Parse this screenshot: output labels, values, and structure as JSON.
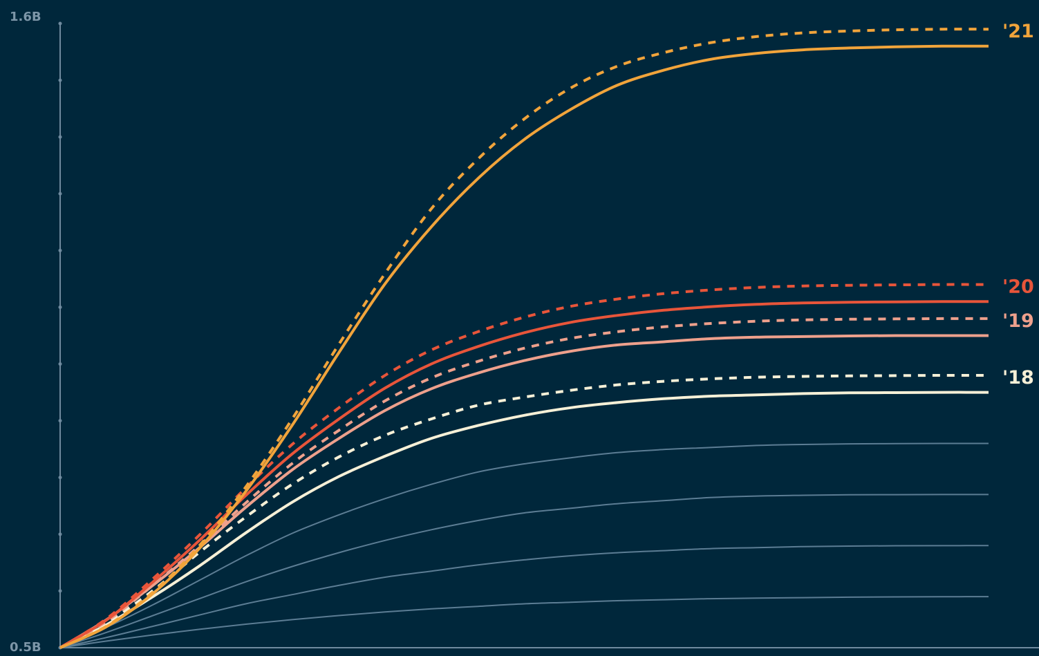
{
  "colors": {
    "background": "#00273b",
    "axis": "#6f8a9e",
    "axis_text": "#7d96a8",
    "gray_series": "#5c7d94",
    "y2018": "#f6f0d7",
    "y2019": "#eea08c",
    "y2020": "#e8553a",
    "y2021": "#f1a43b"
  },
  "chart_data": {
    "type": "line",
    "y_axis": {
      "top_label": "1.6B",
      "bottom_label": "0.5B"
    },
    "ylim": [
      0.5,
      1.6
    ],
    "x_range": [
      0,
      1
    ],
    "grid": false,
    "y_ticks": [
      0.5,
      0.6,
      0.7,
      0.8,
      0.9,
      1.0,
      1.1,
      1.2,
      1.3,
      1.4,
      1.5,
      1.6
    ],
    "x_samples": [
      0,
      0.05,
      0.1,
      0.15,
      0.2,
      0.25,
      0.3,
      0.35,
      0.4,
      0.45,
      0.5,
      0.55,
      0.6,
      0.65,
      0.7,
      0.75,
      0.8,
      0.85,
      0.9,
      0.95,
      1.0
    ],
    "series": [
      {
        "label": "",
        "color_key": "gray_series",
        "style": "solid",
        "width": 2,
        "final": 0.59,
        "shape": [
          0,
          0.13,
          0.25,
          0.36,
          0.46,
          0.55,
          0.63,
          0.7,
          0.76,
          0.81,
          0.86,
          0.89,
          0.92,
          0.94,
          0.96,
          0.97,
          0.98,
          0.99,
          0.995,
          0.998,
          1.0
        ]
      },
      {
        "label": "",
        "color_key": "gray_series",
        "style": "solid",
        "width": 2,
        "final": 0.68,
        "shape": [
          0,
          0.1,
          0.21,
          0.32,
          0.43,
          0.52,
          0.61,
          0.69,
          0.75,
          0.81,
          0.86,
          0.9,
          0.93,
          0.95,
          0.97,
          0.98,
          0.99,
          0.995,
          0.998,
          0.999,
          1.0
        ]
      },
      {
        "label": "",
        "color_key": "gray_series",
        "style": "solid",
        "width": 2,
        "final": 0.77,
        "shape": [
          0,
          0.1,
          0.21,
          0.32,
          0.43,
          0.53,
          0.62,
          0.7,
          0.77,
          0.83,
          0.88,
          0.91,
          0.94,
          0.96,
          0.98,
          0.99,
          0.995,
          0.998,
          0.999,
          1.0,
          1.0
        ]
      },
      {
        "label": "",
        "color_key": "gray_series",
        "style": "solid",
        "width": 2,
        "final": 0.86,
        "shape": [
          0,
          0.1,
          0.21,
          0.33,
          0.45,
          0.56,
          0.65,
          0.73,
          0.8,
          0.86,
          0.9,
          0.93,
          0.955,
          0.97,
          0.98,
          0.99,
          0.995,
          0.998,
          0.999,
          1.0,
          1.0
        ]
      },
      {
        "label": "",
        "color_key": "y2018",
        "style": "solid",
        "width": 4,
        "final": 0.95,
        "shape": [
          0,
          0.09,
          0.2,
          0.32,
          0.45,
          0.57,
          0.67,
          0.75,
          0.82,
          0.87,
          0.91,
          0.94,
          0.96,
          0.975,
          0.985,
          0.99,
          0.995,
          0.998,
          0.999,
          1.0,
          1.0
        ]
      },
      {
        "label": "'18",
        "color_key": "y2018",
        "style": "dashed",
        "width": 4,
        "final": 0.98,
        "shape": [
          0,
          0.09,
          0.21,
          0.35,
          0.48,
          0.6,
          0.7,
          0.78,
          0.84,
          0.89,
          0.92,
          0.945,
          0.965,
          0.978,
          0.987,
          0.993,
          0.996,
          0.998,
          0.999,
          1.0,
          1.0
        ]
      },
      {
        "label": "",
        "color_key": "y2019",
        "style": "solid",
        "width": 4,
        "final": 1.05,
        "shape": [
          0,
          0.09,
          0.2,
          0.32,
          0.45,
          0.57,
          0.67,
          0.76,
          0.83,
          0.88,
          0.92,
          0.95,
          0.97,
          0.98,
          0.99,
          0.995,
          0.997,
          0.999,
          1.0,
          1.0,
          1.0
        ]
      },
      {
        "label": "'19",
        "color_key": "y2019",
        "style": "dashed",
        "width": 4,
        "final": 1.08,
        "shape": [
          0,
          0.08,
          0.19,
          0.31,
          0.44,
          0.56,
          0.66,
          0.75,
          0.82,
          0.87,
          0.91,
          0.94,
          0.96,
          0.975,
          0.985,
          0.992,
          0.996,
          0.998,
          0.999,
          1.0,
          1.0
        ]
      },
      {
        "label": "",
        "color_key": "y2020",
        "style": "solid",
        "width": 4,
        "final": 1.11,
        "shape": [
          0,
          0.08,
          0.19,
          0.31,
          0.44,
          0.56,
          0.66,
          0.75,
          0.82,
          0.87,
          0.91,
          0.94,
          0.96,
          0.975,
          0.985,
          0.992,
          0.996,
          0.998,
          0.999,
          1.0,
          1.0
        ]
      },
      {
        "label": "'20",
        "color_key": "y2020",
        "style": "dashed",
        "width": 4,
        "final": 1.14,
        "shape": [
          0,
          0.08,
          0.19,
          0.31,
          0.44,
          0.56,
          0.66,
          0.75,
          0.82,
          0.87,
          0.91,
          0.94,
          0.96,
          0.975,
          0.985,
          0.992,
          0.996,
          0.998,
          0.999,
          1.0,
          1.0
        ]
      },
      {
        "label": "",
        "color_key": "y2021",
        "style": "solid",
        "width": 4,
        "final": 1.56,
        "shape": [
          0,
          0.035,
          0.09,
          0.165,
          0.26,
          0.37,
          0.49,
          0.605,
          0.7,
          0.78,
          0.845,
          0.895,
          0.935,
          0.96,
          0.978,
          0.988,
          0.994,
          0.997,
          0.999,
          1.0,
          1.0
        ]
      },
      {
        "label": "'21",
        "color_key": "y2021",
        "style": "dashed",
        "width": 4,
        "final": 1.59,
        "shape": [
          0,
          0.035,
          0.09,
          0.165,
          0.26,
          0.37,
          0.49,
          0.605,
          0.71,
          0.79,
          0.855,
          0.905,
          0.94,
          0.962,
          0.978,
          0.988,
          0.994,
          0.997,
          0.999,
          1.0,
          1.0
        ]
      }
    ]
  }
}
